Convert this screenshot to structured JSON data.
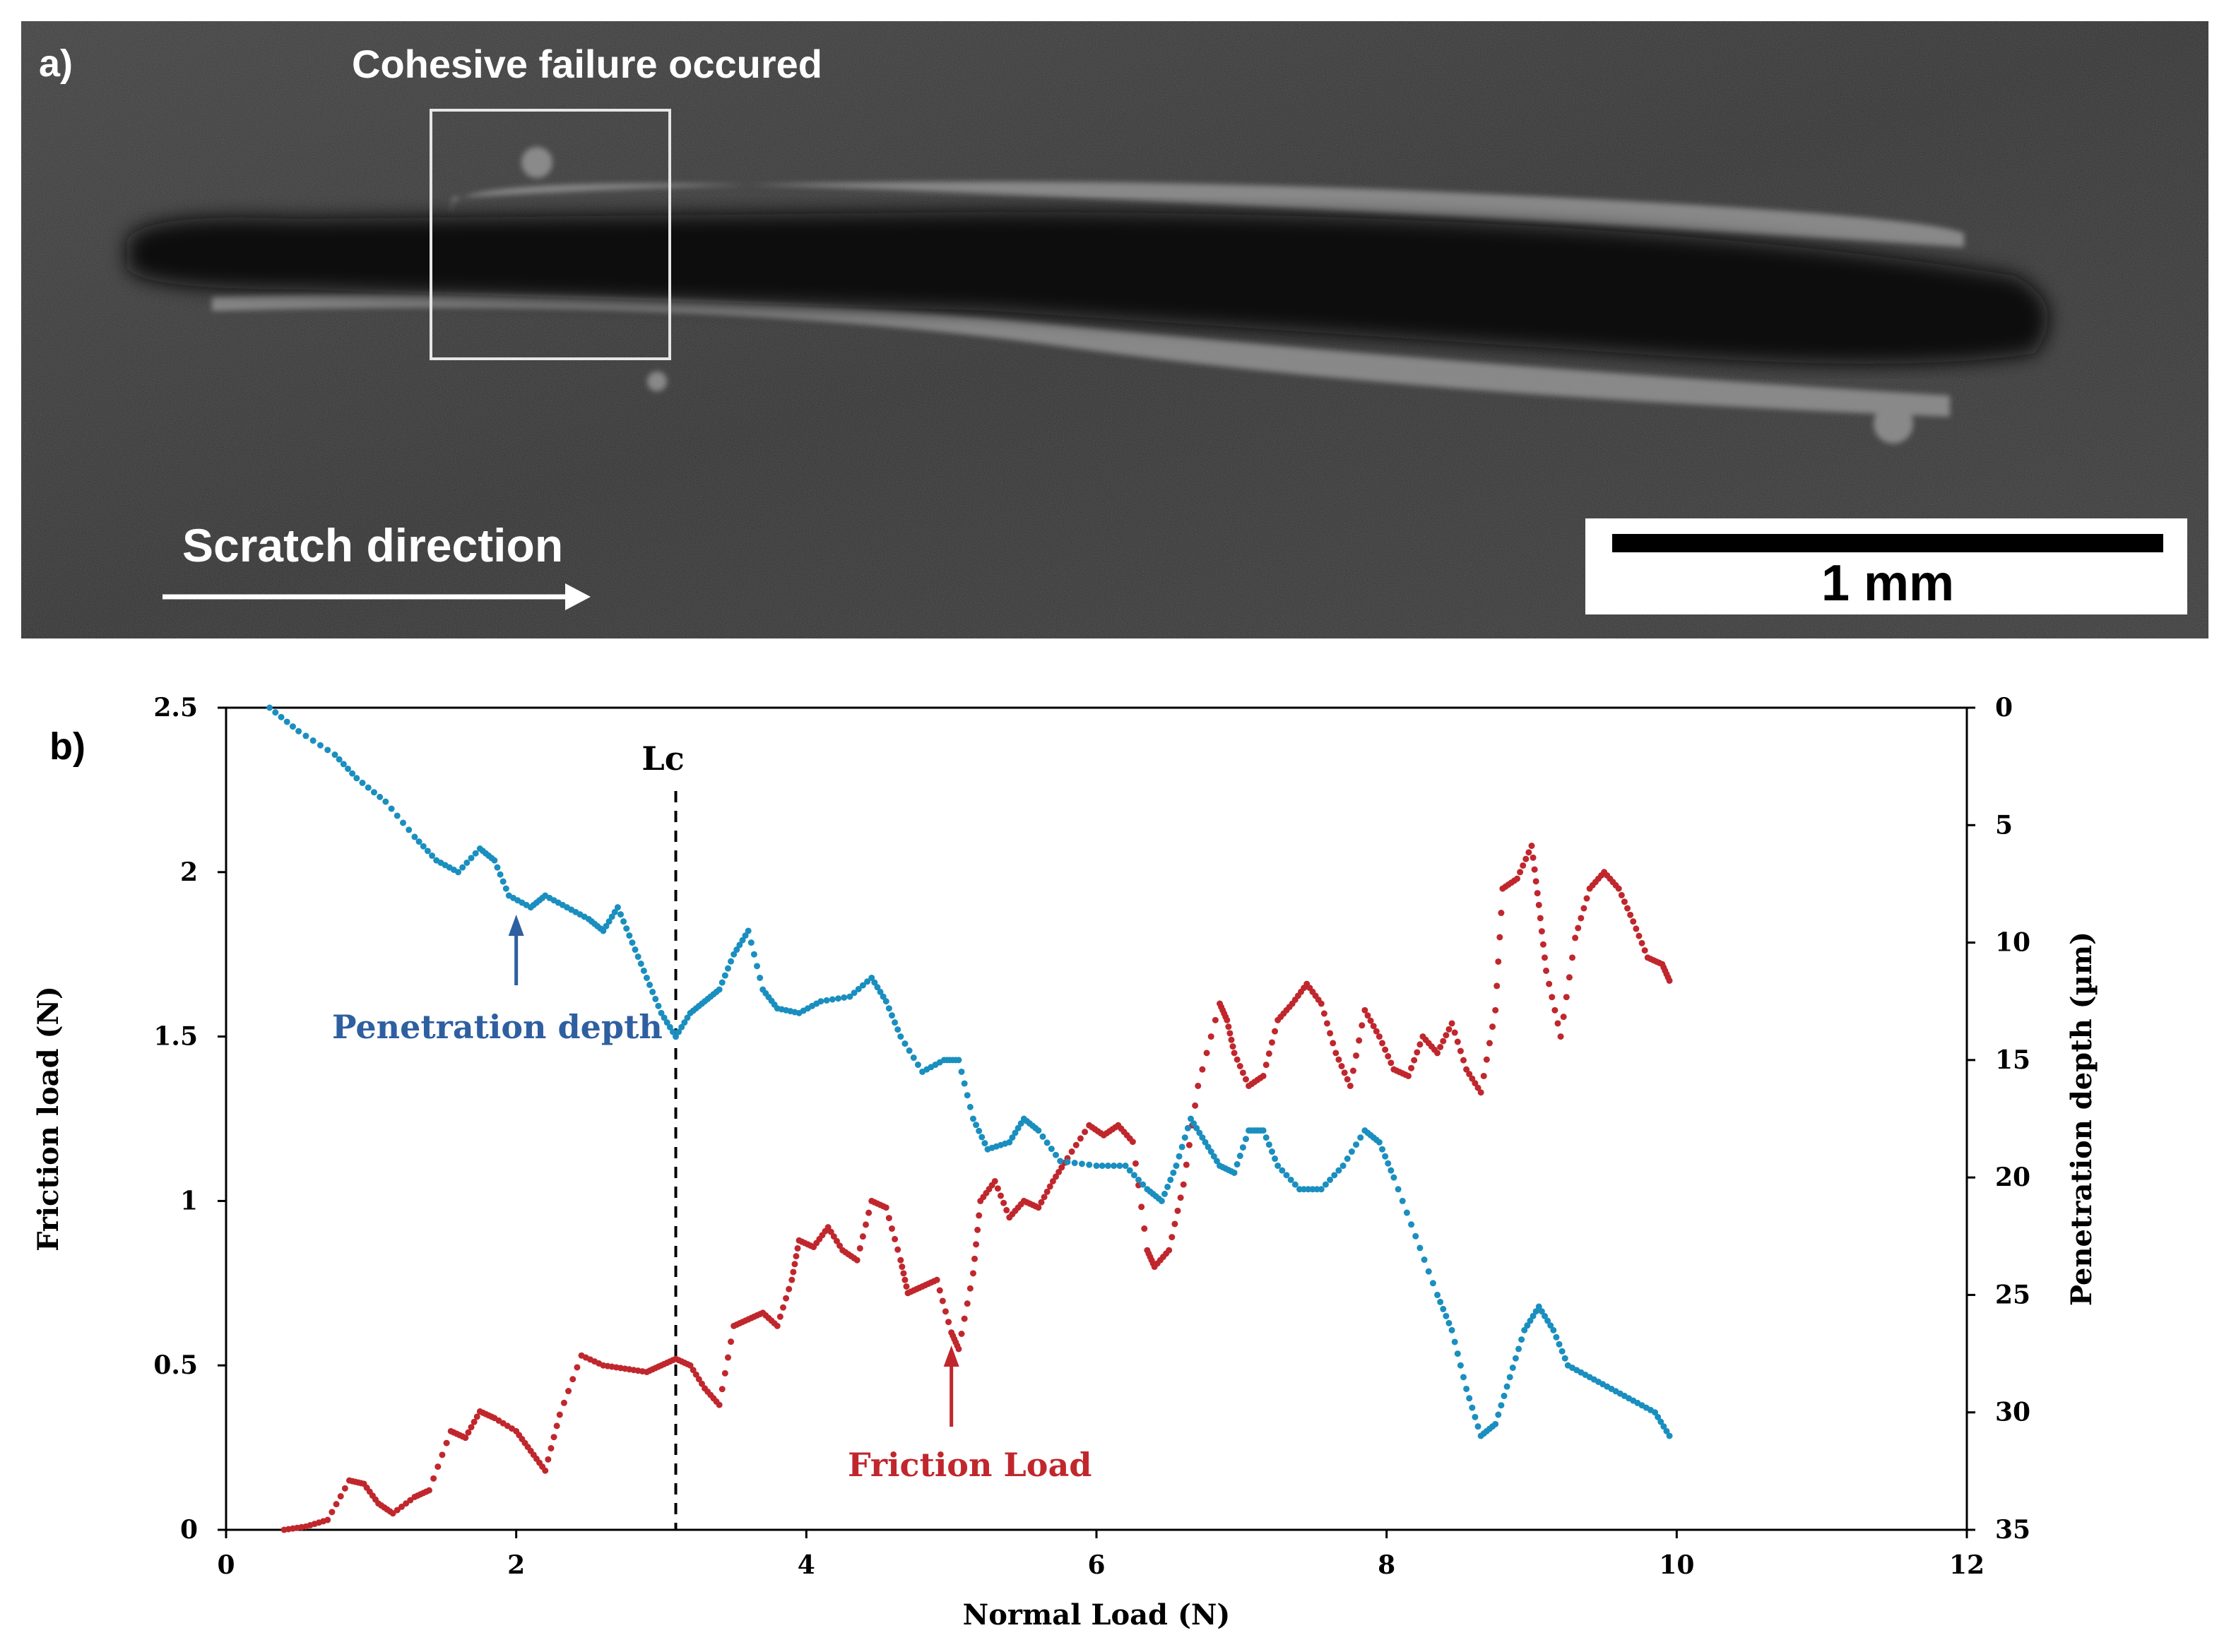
{
  "panel_a": {
    "label": "a)",
    "failure_label": "Cohesive failure occured",
    "direction_label": "Scratch direction",
    "scale_bar_label": "1 mm"
  },
  "panel_b": {
    "label": "b)",
    "lc_label": "Lc",
    "penetration_annotation": "Penetration depth",
    "friction_annotation": "Friction Load"
  },
  "colors": {
    "friction": "#c0272d",
    "penetration": "#1a8fbf",
    "penetration_text": "#2e5fa0",
    "sem_background": "#2b2b2b"
  },
  "chart_data": {
    "type": "scatter",
    "title": "",
    "xlabel": "Normal Load (N)",
    "ylabel_left": "Friction load (N)",
    "ylabel_right": "Penetration depth (µm)",
    "xlim": [
      0,
      12
    ],
    "ylim_left": [
      0,
      2.5
    ],
    "ylim_right": [
      0,
      35
    ],
    "right_axis_inverted": true,
    "x_ticks": [
      0,
      2,
      4,
      6,
      8,
      10,
      12
    ],
    "y_left_ticks": [
      0,
      0.5,
      1,
      1.5,
      2,
      2.5
    ],
    "y_right_ticks": [
      0,
      5,
      10,
      15,
      20,
      25,
      30,
      35
    ],
    "lc": 3.1,
    "series": [
      {
        "name": "Friction Load",
        "axis": "left",
        "points": [
          [
            0.4,
            0.0
          ],
          [
            0.55,
            0.01
          ],
          [
            0.7,
            0.03
          ],
          [
            0.85,
            0.15
          ],
          [
            0.95,
            0.14
          ],
          [
            1.05,
            0.08
          ],
          [
            1.15,
            0.05
          ],
          [
            1.3,
            0.1
          ],
          [
            1.4,
            0.12
          ],
          [
            1.55,
            0.3
          ],
          [
            1.65,
            0.28
          ],
          [
            1.75,
            0.36
          ],
          [
            1.85,
            0.34
          ],
          [
            2.0,
            0.3
          ],
          [
            2.1,
            0.24
          ],
          [
            2.2,
            0.18
          ],
          [
            2.3,
            0.35
          ],
          [
            2.45,
            0.53
          ],
          [
            2.6,
            0.5
          ],
          [
            2.75,
            0.49
          ],
          [
            2.9,
            0.48
          ],
          [
            3.0,
            0.5
          ],
          [
            3.1,
            0.52
          ],
          [
            3.2,
            0.5
          ],
          [
            3.3,
            0.43
          ],
          [
            3.4,
            0.38
          ],
          [
            3.5,
            0.62
          ],
          [
            3.6,
            0.64
          ],
          [
            3.7,
            0.66
          ],
          [
            3.8,
            0.62
          ],
          [
            3.9,
            0.76
          ],
          [
            3.95,
            0.88
          ],
          [
            4.05,
            0.86
          ],
          [
            4.15,
            0.92
          ],
          [
            4.25,
            0.85
          ],
          [
            4.35,
            0.82
          ],
          [
            4.45,
            1.0
          ],
          [
            4.55,
            0.98
          ],
          [
            4.65,
            0.82
          ],
          [
            4.7,
            0.72
          ],
          [
            4.8,
            0.74
          ],
          [
            4.9,
            0.76
          ],
          [
            5.0,
            0.6
          ],
          [
            5.05,
            0.55
          ],
          [
            5.15,
            0.78
          ],
          [
            5.2,
            1.0
          ],
          [
            5.3,
            1.06
          ],
          [
            5.4,
            0.95
          ],
          [
            5.5,
            1.0
          ],
          [
            5.6,
            0.98
          ],
          [
            5.7,
            1.06
          ],
          [
            5.8,
            1.13
          ],
          [
            5.95,
            1.23
          ],
          [
            6.05,
            1.2
          ],
          [
            6.15,
            1.23
          ],
          [
            6.25,
            1.18
          ],
          [
            6.35,
            0.85
          ],
          [
            6.4,
            0.8
          ],
          [
            6.5,
            0.85
          ],
          [
            6.6,
            1.05
          ],
          [
            6.7,
            1.35
          ],
          [
            6.85,
            1.6
          ],
          [
            6.9,
            1.55
          ],
          [
            6.95,
            1.45
          ],
          [
            7.05,
            1.35
          ],
          [
            7.15,
            1.38
          ],
          [
            7.25,
            1.55
          ],
          [
            7.35,
            1.6
          ],
          [
            7.45,
            1.66
          ],
          [
            7.55,
            1.6
          ],
          [
            7.65,
            1.45
          ],
          [
            7.75,
            1.35
          ],
          [
            7.85,
            1.58
          ],
          [
            7.95,
            1.5
          ],
          [
            8.05,
            1.4
          ],
          [
            8.15,
            1.38
          ],
          [
            8.25,
            1.5
          ],
          [
            8.35,
            1.45
          ],
          [
            8.45,
            1.54
          ],
          [
            8.55,
            1.4
          ],
          [
            8.65,
            1.33
          ],
          [
            8.75,
            1.58
          ],
          [
            8.8,
            1.95
          ],
          [
            8.9,
            1.98
          ],
          [
            9.0,
            2.08
          ],
          [
            9.05,
            1.9
          ],
          [
            9.1,
            1.7
          ],
          [
            9.2,
            1.5
          ],
          [
            9.3,
            1.8
          ],
          [
            9.4,
            1.95
          ],
          [
            9.5,
            2.0
          ],
          [
            9.6,
            1.95
          ],
          [
            9.7,
            1.85
          ],
          [
            9.8,
            1.74
          ],
          [
            9.9,
            1.72
          ],
          [
            9.95,
            1.67
          ]
        ]
      },
      {
        "name": "Penetration depth",
        "axis": "right",
        "points": [
          [
            0.3,
            0.0
          ],
          [
            0.5,
            1.0
          ],
          [
            0.75,
            2.0
          ],
          [
            0.9,
            3.0
          ],
          [
            1.1,
            4.0
          ],
          [
            1.3,
            5.5
          ],
          [
            1.45,
            6.5
          ],
          [
            1.6,
            7.0
          ],
          [
            1.75,
            6.0
          ],
          [
            1.85,
            6.5
          ],
          [
            1.95,
            8.0
          ],
          [
            2.1,
            8.5
          ],
          [
            2.2,
            8.0
          ],
          [
            2.35,
            8.5
          ],
          [
            2.5,
            9.0
          ],
          [
            2.6,
            9.5
          ],
          [
            2.7,
            8.5
          ],
          [
            2.8,
            10.0
          ],
          [
            2.9,
            11.5
          ],
          [
            3.0,
            13.0
          ],
          [
            3.1,
            14.0
          ],
          [
            3.2,
            13.0
          ],
          [
            3.3,
            12.5
          ],
          [
            3.4,
            12.0
          ],
          [
            3.5,
            10.5
          ],
          [
            3.6,
            9.5
          ],
          [
            3.7,
            12.0
          ],
          [
            3.8,
            12.8
          ],
          [
            3.95,
            13.0
          ],
          [
            4.1,
            12.5
          ],
          [
            4.3,
            12.3
          ],
          [
            4.45,
            11.5
          ],
          [
            4.55,
            12.5
          ],
          [
            4.65,
            14.0
          ],
          [
            4.8,
            15.5
          ],
          [
            4.95,
            15.0
          ],
          [
            5.05,
            15.0
          ],
          [
            5.15,
            17.5
          ],
          [
            5.25,
            18.8
          ],
          [
            5.4,
            18.5
          ],
          [
            5.5,
            17.5
          ],
          [
            5.6,
            18.0
          ],
          [
            5.75,
            19.3
          ],
          [
            6.0,
            19.5
          ],
          [
            6.2,
            19.5
          ],
          [
            6.35,
            20.5
          ],
          [
            6.45,
            21.0
          ],
          [
            6.55,
            19.5
          ],
          [
            6.65,
            17.5
          ],
          [
            6.75,
            18.5
          ],
          [
            6.85,
            19.5
          ],
          [
            6.95,
            19.8
          ],
          [
            7.05,
            18.0
          ],
          [
            7.15,
            18.0
          ],
          [
            7.25,
            19.5
          ],
          [
            7.4,
            20.5
          ],
          [
            7.55,
            20.5
          ],
          [
            7.7,
            19.5
          ],
          [
            7.85,
            18.0
          ],
          [
            7.95,
            18.5
          ],
          [
            8.05,
            20.0
          ],
          [
            8.2,
            22.5
          ],
          [
            8.35,
            25.0
          ],
          [
            8.45,
            26.5
          ],
          [
            8.55,
            29.0
          ],
          [
            8.65,
            31.0
          ],
          [
            8.75,
            30.5
          ],
          [
            8.85,
            28.5
          ],
          [
            8.95,
            26.5
          ],
          [
            9.05,
            25.5
          ],
          [
            9.15,
            26.5
          ],
          [
            9.25,
            28.0
          ],
          [
            9.4,
            28.5
          ],
          [
            9.55,
            29.0
          ],
          [
            9.7,
            29.5
          ],
          [
            9.85,
            30.0
          ],
          [
            9.95,
            31.0
          ]
        ]
      }
    ]
  }
}
